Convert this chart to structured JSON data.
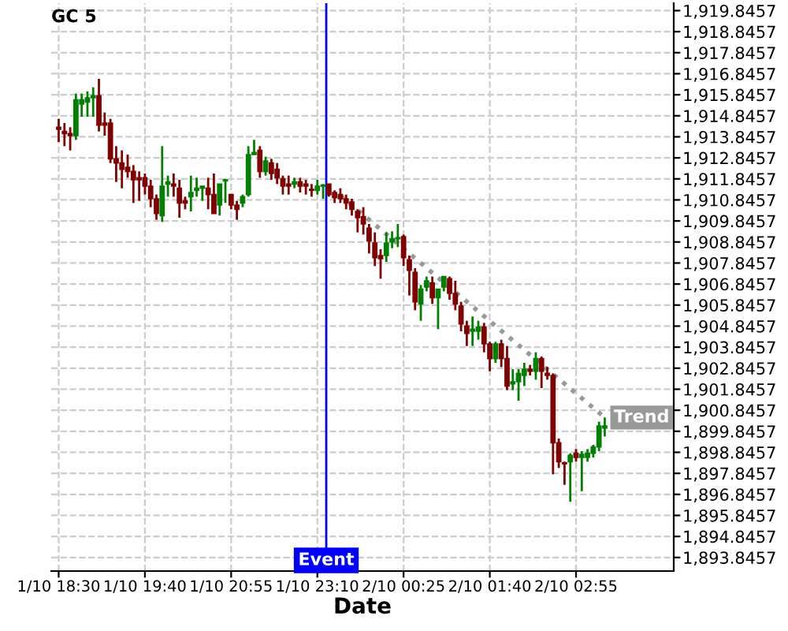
{
  "chart_data": {
    "type": "candlestick",
    "title": "GC 5",
    "xlabel": "Date",
    "categories": [
      "1/10 18:30",
      null,
      null,
      null,
      null,
      null,
      null,
      null,
      null,
      null,
      null,
      null,
      null,
      null,
      null,
      "1/10 19:40",
      null,
      null,
      null,
      null,
      null,
      null,
      null,
      null,
      null,
      null,
      null,
      null,
      null,
      null,
      "1/10 20:55",
      null,
      null,
      null,
      null,
      null,
      null,
      null,
      null,
      null,
      null,
      null,
      null,
      null,
      null,
      "1/10 23:10",
      null,
      null,
      null,
      null,
      null,
      null,
      null,
      null,
      null,
      null,
      null,
      null,
      null,
      null,
      "2/10 00:25",
      null,
      null,
      null,
      null,
      null,
      null,
      null,
      null,
      null,
      null,
      null,
      null,
      null,
      null,
      "2/10 01:40",
      null,
      null,
      null,
      null,
      null,
      null,
      null,
      null,
      null,
      null,
      null,
      null,
      null,
      null,
      "2/10 02:55",
      null,
      null,
      null,
      null,
      null
    ],
    "series": [
      {
        "ohlc": [
          [
            1914.3,
            1914.7,
            1913.6,
            1914.2
          ],
          [
            1914.1,
            1914.5,
            1913.4,
            1914.0
          ],
          [
            1914.0,
            1914.3,
            1913.2,
            1913.9
          ],
          [
            1913.9,
            1915.9,
            1913.7,
            1915.6
          ],
          [
            1915.4,
            1915.9,
            1914.8,
            1915.6
          ],
          [
            1915.5,
            1916.0,
            1914.8,
            1915.7
          ],
          [
            1915.7,
            1916.2,
            1914.8,
            1915.8
          ],
          [
            1915.8,
            1916.6,
            1914.1,
            1914.4
          ],
          [
            1914.5,
            1915.0,
            1913.9,
            1914.4
          ],
          [
            1914.5,
            1914.7,
            1912.6,
            1912.8
          ],
          [
            1912.8,
            1913.4,
            1911.7,
            1912.6
          ],
          [
            1912.6,
            1913.2,
            1911.4,
            1912.3
          ],
          [
            1912.4,
            1913.0,
            1911.9,
            1912.2
          ],
          [
            1912.2,
            1912.5,
            1910.7,
            1911.8
          ],
          [
            1911.9,
            1912.2,
            1910.8,
            1911.8
          ],
          [
            1911.9,
            1912.1,
            1911.1,
            1911.5
          ],
          [
            1911.5,
            1911.8,
            1910.5,
            1910.9
          ],
          [
            1910.9,
            1911.1,
            1909.9,
            1910.2
          ],
          [
            1910.1,
            1913.4,
            1909.8,
            1911.5
          ],
          [
            1911.6,
            1912.0,
            1911.0,
            1911.7
          ],
          [
            1911.6,
            1912.1,
            1911.0,
            1911.5
          ],
          [
            1911.4,
            1911.8,
            1910.0,
            1910.7
          ],
          [
            1910.8,
            1911.0,
            1910.4,
            1910.7
          ],
          [
            1911.0,
            1912.0,
            1910.3,
            1911.2
          ],
          [
            1911.3,
            1911.9,
            1911.0,
            1911.4
          ],
          [
            1911.4,
            1911.5,
            1910.8,
            1911.5
          ],
          [
            1911.4,
            1911.9,
            1910.4,
            1911.1
          ],
          [
            1911.1,
            1912.1,
            1910.2,
            1910.2
          ],
          [
            1910.6,
            1911.6,
            1910.1,
            1911.6
          ],
          [
            1911.75,
            1911.85,
            1910.7,
            1911.8
          ],
          [
            1911.1,
            1911.1,
            1910.4,
            1910.6
          ],
          [
            1910.6,
            1910.8,
            1909.9,
            1910.4
          ],
          [
            1910.7,
            1911.1,
            1910.5,
            1911.0
          ],
          [
            1911.1,
            1913.4,
            1911.0,
            1913.0
          ],
          [
            1913.0,
            1913.7,
            1913.0,
            1913.1
          ],
          [
            1913.2,
            1913.4,
            1911.9,
            1912.2
          ],
          [
            1912.2,
            1912.9,
            1912.0,
            1912.7
          ],
          [
            1912.6,
            1912.8,
            1911.8,
            1912.1
          ],
          [
            1912.3,
            1912.6,
            1911.6,
            1911.9
          ],
          [
            1911.85,
            1912.0,
            1911.1,
            1911.5
          ],
          [
            1911.6,
            1912.0,
            1911.1,
            1911.5
          ],
          [
            1911.6,
            1911.9,
            1911.4,
            1911.7
          ],
          [
            1911.7,
            1911.9,
            1911.2,
            1911.5
          ],
          [
            1911.6,
            1911.8,
            1911.1,
            1911.5
          ],
          [
            1911.35,
            1911.6,
            1911.0,
            1911.3
          ],
          [
            1911.3,
            1911.8,
            1911.1,
            1911.5
          ],
          [
            1911.5,
            1911.6,
            1910.9,
            1911.55
          ],
          [
            1911.6,
            1911.6,
            1911.0,
            1911.1
          ],
          [
            1911.2,
            1911.3,
            1910.7,
            1910.95
          ],
          [
            1911.1,
            1911.4,
            1910.7,
            1910.9
          ],
          [
            1910.9,
            1911.1,
            1910.4,
            1910.7
          ],
          [
            1910.75,
            1910.9,
            1910.1,
            1910.4
          ],
          [
            1910.3,
            1910.4,
            1909.3,
            1910.0
          ],
          [
            1910.05,
            1910.5,
            1909.2,
            1909.7
          ],
          [
            1909.5,
            1909.7,
            1908.3,
            1908.9
          ],
          [
            1908.8,
            1909.3,
            1907.7,
            1908.1
          ],
          [
            1908.2,
            1908.5,
            1907.1,
            1908.05
          ],
          [
            1908.2,
            1909.3,
            1907.9,
            1908.8
          ],
          [
            1908.85,
            1909.35,
            1908.55,
            1909.0
          ],
          [
            1909.0,
            1909.7,
            1908.6,
            1909.05
          ],
          [
            1909.1,
            1909.2,
            1907.7,
            1908.1
          ],
          [
            1908.0,
            1908.2,
            1906.3,
            1907.5
          ],
          [
            1907.4,
            1907.6,
            1905.6,
            1906.0
          ],
          [
            1905.9,
            1906.8,
            1905.1,
            1906.6
          ],
          [
            1906.7,
            1907.2,
            1906.5,
            1907.0
          ],
          [
            1906.9,
            1907.2,
            1905.9,
            1906.2
          ],
          [
            1906.2,
            1906.6,
            1904.7,
            1906.6
          ],
          [
            1906.7,
            1907.2,
            1906.5,
            1907.2
          ],
          [
            1907.1,
            1907.2,
            1906.1,
            1906.4
          ],
          [
            1906.4,
            1907.0,
            1905.6,
            1905.9
          ],
          [
            1905.8,
            1906.0,
            1904.6,
            1904.95
          ],
          [
            1904.85,
            1905.1,
            1903.9,
            1904.5
          ],
          [
            1904.6,
            1905.3,
            1903.9,
            1904.7
          ],
          [
            1904.6,
            1905.1,
            1904.2,
            1904.8
          ],
          [
            1904.8,
            1905.0,
            1903.6,
            1904.0
          ],
          [
            1904.0,
            1904.1,
            1902.7,
            1903.3
          ],
          [
            1903.3,
            1904.1,
            1903.1,
            1904.0
          ],
          [
            1904.0,
            1904.2,
            1902.9,
            1903.3
          ],
          [
            1903.3,
            1903.9,
            1901.8,
            1902.0
          ],
          [
            1902.1,
            1902.8,
            1901.8,
            1902.2
          ],
          [
            1902.2,
            1902.8,
            1901.3,
            1902.6
          ],
          [
            1902.5,
            1903.1,
            1902.0,
            1902.8
          ],
          [
            1902.8,
            1903.0,
            1902.5,
            1902.7
          ],
          [
            1902.7,
            1903.6,
            1902.3,
            1903.3
          ],
          [
            1903.3,
            1903.4,
            1901.9,
            1902.7
          ],
          [
            1902.6,
            1902.9,
            1902.3,
            1902.5
          ],
          [
            1902.5,
            1902.6,
            1897.8,
            1899.3
          ],
          [
            1899.3,
            1899.5,
            1898.1,
            1898.4
          ],
          [
            1898.35,
            1898.4,
            1897.3,
            1898.3
          ],
          [
            1898.4,
            1898.8,
            1896.5,
            1898.7
          ],
          [
            1898.8,
            1899.0,
            1898.4,
            1898.6
          ],
          [
            1898.6,
            1898.9,
            1897.0,
            1898.75
          ],
          [
            1898.6,
            1899.0,
            1898.4,
            1898.8
          ],
          [
            1898.8,
            1899.2,
            1898.6,
            1899.1
          ],
          [
            1899.1,
            1900.3,
            1898.9,
            1900.1
          ],
          [
            1900.0,
            1900.5,
            1899.6,
            1900.1
          ]
        ],
        "colors": [
          "#800000",
          "#800000",
          "#800000",
          "#008000",
          "#008000",
          "#008000",
          "#008000",
          "#800000",
          "#800000",
          "#800000",
          "#800000",
          "#800000",
          "#800000",
          "#800000",
          "#800000",
          "#800000",
          "#800000",
          "#800000",
          "#008000",
          "#008000",
          "#800000",
          "#800000",
          "#800000",
          "#008000",
          "#008000",
          "#008000",
          "#800000",
          "#800000",
          "#008000",
          "#008000",
          "#800000",
          "#800000",
          "#008000",
          "#008000",
          "#008000",
          "#800000",
          "#008000",
          "#800000",
          "#800000",
          "#800000",
          "#800000",
          "#008000",
          "#800000",
          "#800000",
          "#800000",
          "#008000",
          "#008000",
          "#800000",
          "#800000",
          "#800000",
          "#800000",
          "#800000",
          "#800000",
          "#800000",
          "#800000",
          "#800000",
          "#800000",
          "#008000",
          "#008000",
          "#008000",
          "#800000",
          "#800000",
          "#800000",
          "#008000",
          "#008000",
          "#800000",
          "#008000",
          "#008000",
          "#800000",
          "#800000",
          "#800000",
          "#800000",
          "#008000",
          "#008000",
          "#800000",
          "#800000",
          "#008000",
          "#800000",
          "#800000",
          "#008000",
          "#008000",
          "#008000",
          "#800000",
          "#008000",
          "#800000",
          "#800000",
          "#800000",
          "#800000",
          "#800000",
          "#008000",
          "#800000",
          "#008000",
          "#008000",
          "#008000",
          "#008000",
          "#008000"
        ]
      },
      {
        "type": "line",
        "name": "Trend",
        "color": "#999999",
        "line_style": "dotted",
        "values": [
          null,
          null,
          null,
          null,
          null,
          null,
          null,
          null,
          null,
          null,
          null,
          null,
          null,
          null,
          null,
          null,
          null,
          null,
          null,
          null,
          null,
          null,
          null,
          null,
          null,
          null,
          null,
          null,
          null,
          null,
          null,
          null,
          null,
          null,
          null,
          null,
          null,
          null,
          null,
          null,
          null,
          null,
          null,
          null,
          null,
          null,
          null,
          null,
          null,
          1911.05,
          null,
          null,
          null,
          null,
          null,
          null,
          null,
          null,
          null,
          null,
          null,
          null,
          null,
          null,
          null,
          null,
          null,
          null,
          null,
          null,
          null,
          null,
          null,
          null,
          null,
          null,
          null,
          null,
          null,
          null,
          null,
          null,
          null,
          null,
          null,
          null,
          null,
          null,
          null,
          null,
          null,
          null,
          null,
          null,
          null,
          1900.5
        ]
      }
    ],
    "ylim": [
      1893.2,
      1920.2
    ],
    "yticks": [
      {
        "value": 1893.8457,
        "label": "1,893.8457"
      },
      {
        "value": 1894.8457,
        "label": "1,894.8457"
      },
      {
        "value": 1895.8457,
        "label": "1,895.8457"
      },
      {
        "value": 1896.8457,
        "label": "1,896.8457"
      },
      {
        "value": 1897.8457,
        "label": "1,897.8457"
      },
      {
        "value": 1898.8457,
        "label": "1,898.8457"
      },
      {
        "value": 1899.8457,
        "label": "1,899.8457"
      },
      {
        "value": 1900.8457,
        "label": "1,900.8457"
      },
      {
        "value": 1901.8457,
        "label": "1,901.8457"
      },
      {
        "value": 1902.8457,
        "label": "1,902.8457"
      },
      {
        "value": 1903.8457,
        "label": "1,903.8457"
      },
      {
        "value": 1904.8457,
        "label": "1,904.8457"
      },
      {
        "value": 1905.8457,
        "label": "1,905.8457"
      },
      {
        "value": 1906.8457,
        "label": "1,906.8457"
      },
      {
        "value": 1907.8457,
        "label": "1,907.8457"
      },
      {
        "value": 1908.8457,
        "label": "1,908.8457"
      },
      {
        "value": 1909.8457,
        "label": "1,909.8457"
      },
      {
        "value": 1910.8457,
        "label": "1,910.8457"
      },
      {
        "value": 1911.8457,
        "label": "1,911.8457"
      },
      {
        "value": 1912.8457,
        "label": "1,912.8457"
      },
      {
        "value": 1913.8457,
        "label": "1,913.8457"
      },
      {
        "value": 1914.8457,
        "label": "1,914.8457"
      },
      {
        "value": 1915.8457,
        "label": "1,915.8457"
      },
      {
        "value": 1916.8457,
        "label": "1,916.8457"
      },
      {
        "value": 1917.8457,
        "label": "1,917.8457"
      },
      {
        "value": 1918.8457,
        "label": "1,918.8457"
      },
      {
        "value": 1919.8457,
        "label": "1,919.8457"
      }
    ],
    "annotations": [
      "Event"
    ],
    "grid": true,
    "legend": false
  }
}
